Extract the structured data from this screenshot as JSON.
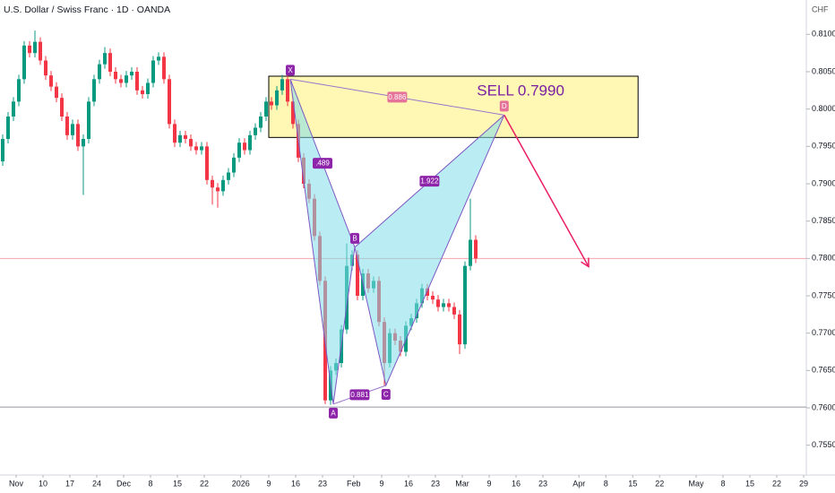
{
  "chart_data": {
    "type": "candlestick",
    "title": "U.S. Dollar / Swiss Franc · 1D · OANDA",
    "currency": "CHF",
    "annotation": "SELL 0.7990",
    "up_color": "#089981",
    "down_color": "#f23645",
    "xlim": [
      0,
      150
    ],
    "ylim": [
      0.751,
      0.8146
    ],
    "xticks": [
      {
        "value": 3,
        "label": "Nov"
      },
      10,
      17,
      24,
      {
        "value": 23,
        "label": "Dec"
      },
      8,
      15,
      22,
      {
        "value": 44.8,
        "label": "2026"
      },
      9,
      16,
      23,
      {
        "value": 65.8,
        "label": "Feb"
      },
      9,
      16,
      23,
      {
        "value": 86,
        "label": "Mar"
      },
      9,
      16,
      23,
      {
        "value": 107.7,
        "label": "Apr"
      },
      8,
      15,
      22,
      {
        "value": 129.5,
        "label": "May"
      },
      8,
      15,
      22,
      29
    ],
    "xtick_positions": [
      3,
      8,
      13,
      18,
      23,
      28,
      33,
      38,
      44.8,
      50,
      55,
      60,
      65.8,
      71,
      76,
      81,
      86,
      91,
      96,
      101,
      107.7,
      112.7,
      117.7,
      122.7,
      129.5,
      134.5,
      139.5,
      144.5,
      149.5
    ],
    "yticks": [
      {
        "value": 0.755,
        "label": "0.75500"
      },
      {
        "value": 0.76,
        "label": "0.76000"
      },
      {
        "value": 0.765,
        "label": "0.76500"
      },
      {
        "value": 0.77,
        "label": "0.77000"
      },
      {
        "value": 0.775,
        "label": "0.77500"
      },
      {
        "value": 0.78,
        "label": "0.78000"
      },
      {
        "value": 0.785,
        "label": "0.78500"
      },
      {
        "value": 0.79,
        "label": "0.79000"
      },
      {
        "value": 0.795,
        "label": "0.79500"
      },
      {
        "value": 0.8,
        "label": "0.80000"
      },
      {
        "value": 0.805,
        "label": "0.80500"
      },
      {
        "value": 0.81,
        "label": "0.81000"
      }
    ],
    "open": [
      0.793,
      0.796,
      0.799,
      0.801,
      0.804,
      0.8085,
      0.8075,
      0.809,
      0.8065,
      0.8045,
      0.803,
      0.8015,
      0.799,
      0.7965,
      0.798,
      0.795,
      0.796,
      0.801,
      0.804,
      0.806,
      0.8075,
      0.805,
      0.804,
      0.8035,
      0.8045,
      0.805,
      0.8025,
      0.802,
      0.8035,
      0.8065,
      0.807,
      0.804,
      0.798,
      0.7955,
      0.7965,
      0.796,
      0.795,
      0.7945,
      0.795,
      0.7905,
      0.7895,
      0.789,
      0.7905,
      0.7915,
      0.7935,
      0.7955,
      0.7945,
      0.7965,
      0.7975,
      0.799,
      0.801,
      0.8005,
      0.8025,
      0.804,
      0.801,
      0.798,
      0.7935,
      0.79,
      0.788,
      0.783,
      0.777,
      0.761,
      0.765,
      0.766,
      0.7705,
      0.779,
      0.7805,
      0.775,
      0.778,
      0.776,
      0.777,
      0.7715,
      0.766,
      0.77,
      0.769,
      0.7675,
      0.771,
      0.772,
      0.774,
      0.776,
      0.775,
      0.7745,
      0.7735,
      0.774,
      0.7735,
      0.7725,
      0.7685,
      0.779,
      0.7825
    ],
    "high": [
      0.7966,
      0.7996,
      0.8016,
      0.8046,
      0.8091,
      0.8091,
      0.8105,
      0.8096,
      0.8071,
      0.8051,
      0.8036,
      0.8021,
      0.7996,
      0.7986,
      0.7986,
      0.7966,
      0.8016,
      0.8046,
      0.8066,
      0.8083,
      0.8081,
      0.8056,
      0.8046,
      0.8051,
      0.8056,
      0.8056,
      0.8031,
      0.8041,
      0.8071,
      0.8076,
      0.8076,
      0.8046,
      0.7986,
      0.7971,
      0.7971,
      0.7966,
      0.7956,
      0.7956,
      0.7956,
      0.7911,
      0.7901,
      0.7911,
      0.7921,
      0.7941,
      0.7961,
      0.7961,
      0.7971,
      0.7981,
      0.7996,
      0.8016,
      0.8016,
      0.8031,
      0.8046,
      0.8046,
      0.8016,
      0.7986,
      0.7941,
      0.7906,
      0.7886,
      0.7836,
      0.7776,
      0.7656,
      0.7666,
      0.7711,
      0.782,
      0.7811,
      0.7811,
      0.7786,
      0.7786,
      0.7776,
      0.7776,
      0.7721,
      0.7706,
      0.7706,
      0.7696,
      0.7716,
      0.7726,
      0.7746,
      0.7766,
      0.7766,
      0.7756,
      0.7751,
      0.7746,
      0.7746,
      0.7741,
      0.7731,
      0.7796,
      0.788,
      0.7831
    ],
    "low": [
      0.7924,
      0.7954,
      0.7984,
      0.8004,
      0.8034,
      0.8069,
      0.8069,
      0.8059,
      0.8039,
      0.8024,
      0.8009,
      0.7984,
      0.7959,
      0.7959,
      0.7944,
      0.7885,
      0.7954,
      0.8004,
      0.8034,
      0.8054,
      0.8044,
      0.8034,
      0.8029,
      0.8029,
      0.8039,
      0.8019,
      0.8014,
      0.8014,
      0.8029,
      0.8059,
      0.8034,
      0.7974,
      0.7949,
      0.7949,
      0.7954,
      0.7944,
      0.7939,
      0.7939,
      0.7899,
      0.7872,
      0.7868,
      0.7884,
      0.7899,
      0.7909,
      0.7929,
      0.7939,
      0.7939,
      0.7959,
      0.7969,
      0.7984,
      0.7999,
      0.7999,
      0.8019,
      0.8004,
      0.7974,
      0.7929,
      0.7894,
      0.7874,
      0.7824,
      0.7764,
      0.7605,
      0.7604,
      0.7644,
      0.7654,
      0.7699,
      0.7784,
      0.7744,
      0.7744,
      0.7754,
      0.7754,
      0.7709,
      0.763,
      0.7654,
      0.7684,
      0.7669,
      0.7669,
      0.7704,
      0.7714,
      0.7734,
      0.7744,
      0.7739,
      0.7729,
      0.7729,
      0.7729,
      0.7719,
      0.7672,
      0.7679,
      0.7784,
      0.7794
    ],
    "close": [
      0.796,
      0.799,
      0.801,
      0.804,
      0.8085,
      0.8075,
      0.809,
      0.8065,
      0.8045,
      0.803,
      0.8015,
      0.799,
      0.7965,
      0.798,
      0.795,
      0.796,
      0.801,
      0.804,
      0.806,
      0.8075,
      0.805,
      0.804,
      0.8035,
      0.8045,
      0.805,
      0.8025,
      0.802,
      0.8035,
      0.8065,
      0.807,
      0.804,
      0.798,
      0.7955,
      0.7965,
      0.796,
      0.795,
      0.7945,
      0.795,
      0.7905,
      0.7895,
      0.789,
      0.7905,
      0.7915,
      0.7935,
      0.7955,
      0.7945,
      0.7965,
      0.7975,
      0.799,
      0.801,
      0.8005,
      0.8025,
      0.804,
      0.801,
      0.798,
      0.7935,
      0.79,
      0.788,
      0.783,
      0.777,
      0.761,
      0.765,
      0.766,
      0.7705,
      0.779,
      0.7805,
      0.775,
      0.778,
      0.776,
      0.777,
      0.7715,
      0.766,
      0.77,
      0.769,
      0.7675,
      0.771,
      0.772,
      0.774,
      0.776,
      0.775,
      0.7745,
      0.7735,
      0.774,
      0.7735,
      0.7725,
      0.7685,
      0.779,
      0.7825,
      0.78
    ],
    "price_line": 0.78,
    "support_line": 0.7601,
    "zone": {
      "x": [
        50,
        118.7
      ],
      "y": [
        0.7962,
        0.8044
      ]
    },
    "pattern": [
      {
        "label": "X",
        "x": 54,
        "y": 0.804
      },
      {
        "label": "A",
        "x": 62,
        "y": 0.7605
      },
      {
        "label": "B",
        "x": 66,
        "y": 0.7815
      },
      {
        "label": "C",
        "x": 71.8,
        "y": 0.763
      },
      {
        "label": "D",
        "x": 93.8,
        "y": 0.7992
      }
    ],
    "ratios": [
      "0.886",
      ".489",
      "1.922",
      "0.881"
    ],
    "arrow_target": {
      "x": 109.5,
      "y": 0.7789
    }
  }
}
